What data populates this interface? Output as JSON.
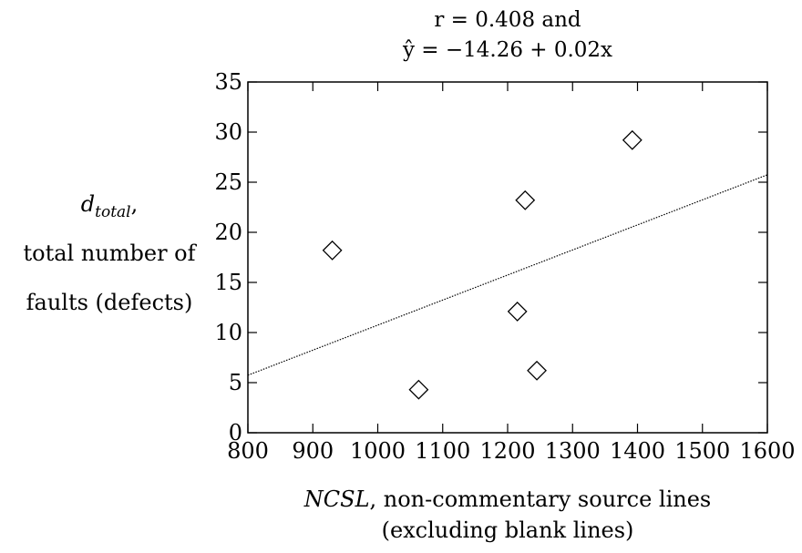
{
  "chart_data": {
    "type": "scatter",
    "title_lines": [
      "r = 0.408 and",
      "ŷ = −14.26 + 0.02x"
    ],
    "ylabel_lines": [
      "d_total,",
      "total number of",
      "faults (defects)"
    ],
    "ylabel_var": "d",
    "ylabel_sub": "total",
    "ylabel_sep": ",",
    "xlabel_var": "NCSL",
    "xlabel_line1_rest": ", non-commentary source lines",
    "xlabel_line2": "(excluding blank lines)",
    "xlim": [
      800,
      1600
    ],
    "ylim": [
      0,
      35
    ],
    "xticks": [
      800,
      900,
      1000,
      1100,
      1200,
      1300,
      1400,
      1500,
      1600
    ],
    "yticks": [
      0,
      5,
      10,
      15,
      20,
      25,
      30,
      35
    ],
    "points": [
      {
        "x": 930,
        "y": 18.2
      },
      {
        "x": 1063,
        "y": 4.3
      },
      {
        "x": 1215,
        "y": 12.1
      },
      {
        "x": 1227,
        "y": 23.2
      },
      {
        "x": 1245,
        "y": 6.2
      },
      {
        "x": 1392,
        "y": 29.2
      }
    ],
    "fit_line": {
      "intercept": -14.26,
      "slope": 0.025,
      "style": "dotted"
    },
    "grid": false,
    "marker": "diamond"
  }
}
